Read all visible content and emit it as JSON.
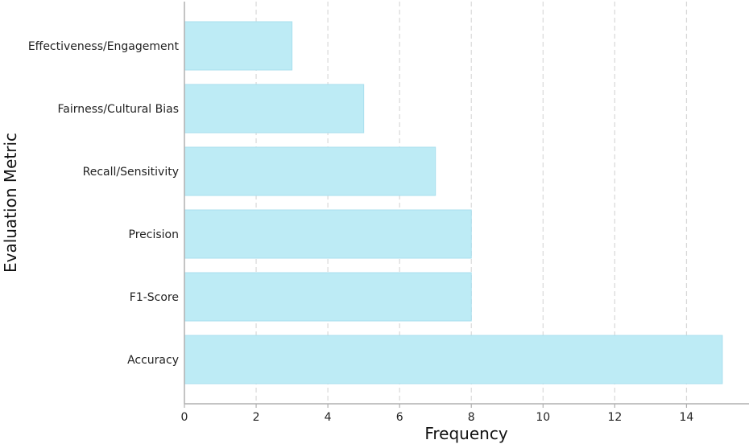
{
  "chart_data": {
    "type": "bar",
    "orientation": "horizontal",
    "categories": [
      "Effectiveness/Engagement",
      "Fairness/Cultural Bias",
      "Recall/Sensitivity",
      "Precision",
      "F1-Score",
      "Accuracy"
    ],
    "values": [
      3,
      5,
      7,
      8,
      8,
      15
    ],
    "title": "",
    "xlabel": "Frequency",
    "ylabel": "Evaluation Metric",
    "xlim": [
      0,
      15.75
    ],
    "xticks": [
      "0",
      "2",
      "4",
      "6",
      "8",
      "10",
      "12",
      "14"
    ],
    "grid": "vertical dashed",
    "bar_color": "#bdebf5",
    "bar_edge_color": "#a9dfee",
    "grid_color": "#d9d9d9",
    "axis_color": "#b0b0b0"
  }
}
